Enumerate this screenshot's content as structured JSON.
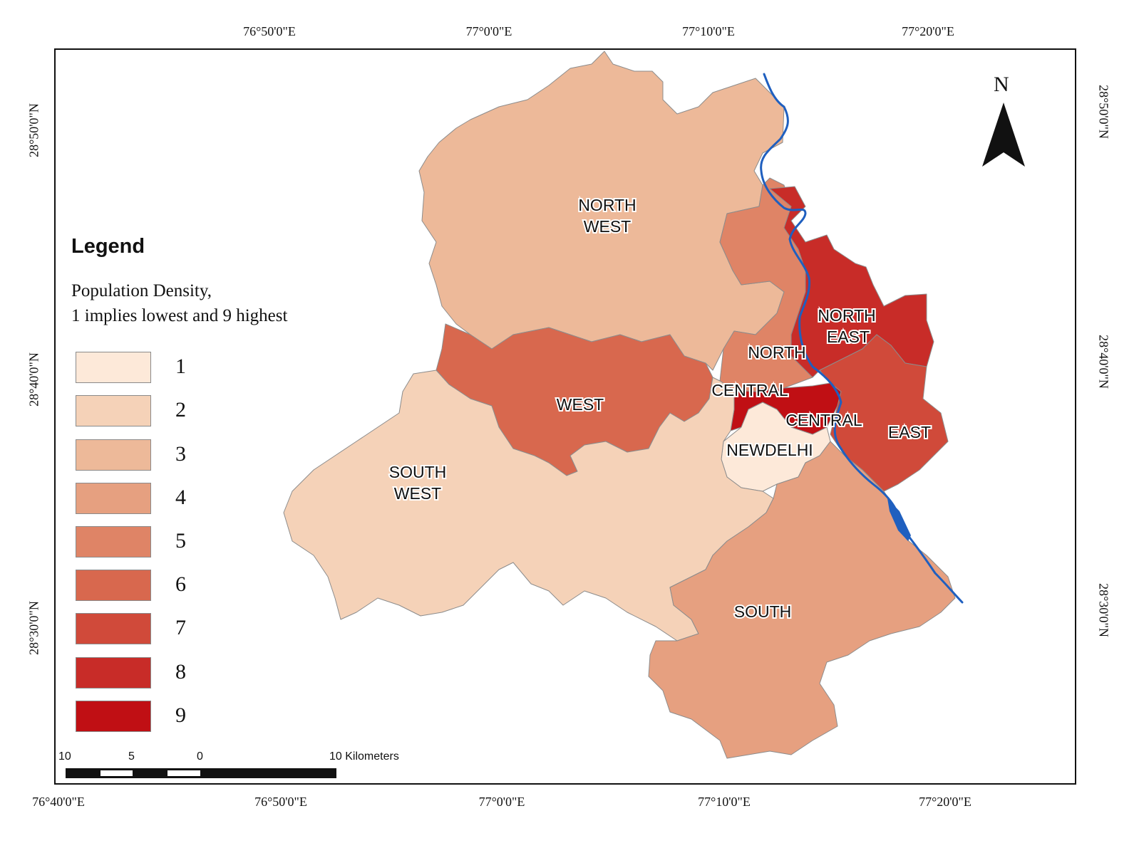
{
  "map": {
    "longitude_ticks_top": [
      "76°50'0\"E",
      "77°0'0\"E",
      "77°10'0\"E",
      "77°20'0\"E"
    ],
    "longitude_ticks_bottom": [
      "76°40'0\"E",
      "76°50'0\"E",
      "77°0'0\"E",
      "77°10'0\"E",
      "77°20'0\"E"
    ],
    "latitude_ticks_left": [
      "28°50'0\"N",
      "28°40'0\"N",
      "28°30'0\"N"
    ],
    "latitude_ticks_right": [
      "28°50'0\"N",
      "28°40'0\"N",
      "28°30'0\"N"
    ],
    "north_arrow_label": "N",
    "river_color": "#1f5fbf",
    "districts": [
      {
        "id": "north-west",
        "label_lines": [
          "NORTH",
          "WEST"
        ],
        "density_class": 3
      },
      {
        "id": "north",
        "label_lines": [
          "NORTH"
        ],
        "density_class": 5
      },
      {
        "id": "north-east",
        "label_lines": [
          "NORTH",
          "EAST"
        ],
        "density_class": 8
      },
      {
        "id": "west",
        "label_lines": [
          "WEST"
        ],
        "density_class": 6
      },
      {
        "id": "central",
        "label_lines": [
          "CENTRAL"
        ],
        "density_class": 9
      },
      {
        "id": "east",
        "label_lines": [
          "EAST"
        ],
        "density_class": 7
      },
      {
        "id": "new-delhi",
        "label_lines": [
          "NEWDELHI"
        ],
        "density_class": 1
      },
      {
        "id": "south-west",
        "label_lines": [
          "SOUTH",
          "WEST"
        ],
        "density_class": 2
      },
      {
        "id": "south",
        "label_lines": [
          "SOUTH"
        ],
        "density_class": 4
      }
    ],
    "floating_labels": {
      "central_left": "CENTRAL"
    }
  },
  "legend": {
    "title": "Legend",
    "description_line1": "Population Density,",
    "description_line2": "1 implies lowest and 9 highest",
    "classes": [
      {
        "label": "1",
        "color": "#fde9d9"
      },
      {
        "label": "2",
        "color": "#f5d2b8"
      },
      {
        "label": "3",
        "color": "#edb999"
      },
      {
        "label": "4",
        "color": "#e6a080"
      },
      {
        "label": "5",
        "color": "#df8466"
      },
      {
        "label": "6",
        "color": "#d8684e"
      },
      {
        "label": "7",
        "color": "#d04a3a"
      },
      {
        "label": "8",
        "color": "#c82c28"
      },
      {
        "label": "9",
        "color": "#c00f14"
      }
    ]
  },
  "scale_bar": {
    "labels": [
      "10",
      "5",
      "0",
      "10 Kilometers"
    ]
  }
}
